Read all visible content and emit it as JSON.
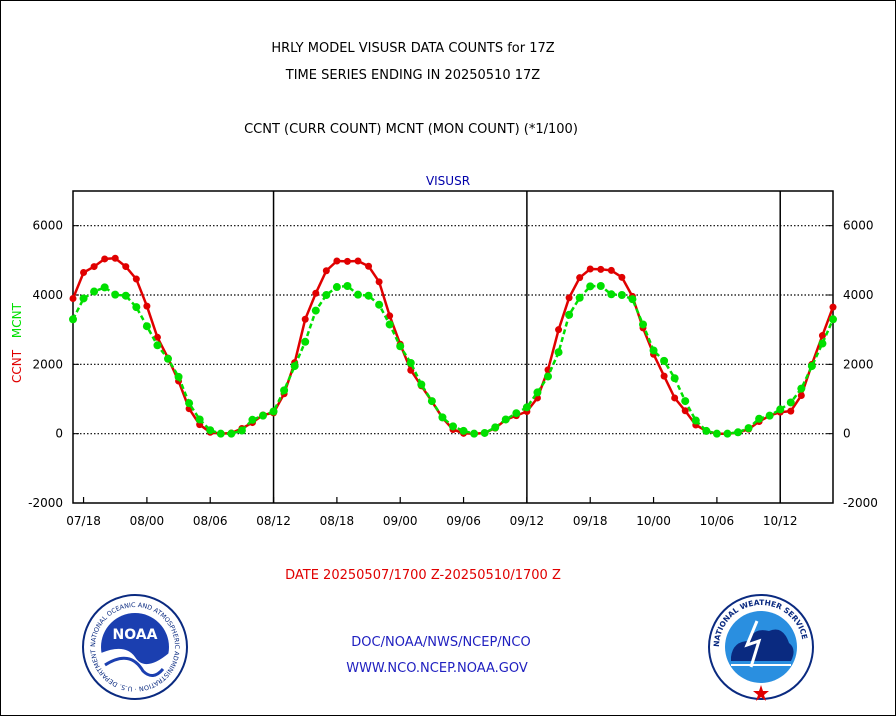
{
  "header": {
    "title_line1": "HRLY MODEL VISUSR DATA COUNTS for 17Z",
    "title_line2": "TIME SERIES ENDING IN 20250510 17Z",
    "subtitle": "CCNT (CURR COUNT) MCNT (MON COUNT) (*1/100)"
  },
  "chart_data": {
    "type": "line",
    "title": "VISUSR",
    "ylabel_parts": [
      "CCNT",
      "MCNT"
    ],
    "xlabel": "DATE 20250507/1700 Z-20250510/1700 Z",
    "ylim": [
      -2000,
      7000
    ],
    "yticks": [
      -2000,
      0,
      2000,
      4000,
      6000
    ],
    "ytick_labels": [
      "-2000",
      "0",
      "2000",
      "4000",
      "6000"
    ],
    "x_start": "2025-05-07 17:00",
    "x_end": "2025-05-10 17:00",
    "xtick_labels": [
      "07/18",
      "08/00",
      "08/06",
      "08/12",
      "08/18",
      "09/00",
      "09/06",
      "09/12",
      "09/18",
      "10/00",
      "10/06",
      "10/12"
    ],
    "grid": "horizontal dotted at y ticks; vertical solid at 12Z",
    "series": [
      {
        "name": "CCNT",
        "color": "#e00000",
        "values": [
          3900,
          4650,
          4820,
          5040,
          5060,
          4820,
          4460,
          3680,
          2780,
          2180,
          1520,
          720,
          260,
          40,
          0,
          20,
          150,
          320,
          540,
          600,
          1150,
          2050,
          3300,
          4050,
          4700,
          4980,
          4970,
          4980,
          4830,
          4380,
          3400,
          2580,
          1830,
          1380,
          930,
          460,
          120,
          10,
          0,
          20,
          160,
          400,
          520,
          640,
          1030,
          1840,
          3000,
          3920,
          4500,
          4750,
          4740,
          4710,
          4510,
          3960,
          3050,
          2290,
          1660,
          1030,
          660,
          250,
          80,
          0,
          0,
          30,
          130,
          350,
          520,
          620,
          650,
          1100,
          2000,
          2830,
          3650
        ]
      },
      {
        "name": "MCNT",
        "color": "#00e000",
        "values": [
          3300,
          3900,
          4100,
          4220,
          4010,
          3980,
          3650,
          3100,
          2550,
          2160,
          1640,
          880,
          410,
          100,
          0,
          0,
          90,
          400,
          520,
          640,
          1250,
          1950,
          2650,
          3550,
          4000,
          4230,
          4260,
          4010,
          3980,
          3720,
          3150,
          2520,
          2040,
          1420,
          940,
          470,
          210,
          80,
          0,
          20,
          180,
          410,
          590,
          760,
          1190,
          1650,
          2350,
          3430,
          3920,
          4250,
          4260,
          4020,
          4000,
          3880,
          3150,
          2400,
          2100,
          1600,
          940,
          380,
          80,
          0,
          0,
          40,
          160,
          430,
          520,
          700,
          900,
          1300,
          1950,
          2600,
          3300
        ]
      }
    ]
  },
  "footer": {
    "line1": "DOC/NOAA/NWS/NCEP/NCO",
    "line2": "WWW.NCO.NCEP.NOAA.GOV",
    "noaa_logo_text": "NOAA",
    "noaa_ring_text": "NATIONAL OCEANIC AND ATMOSPHERIC ADMINISTRATION · U.S. DEPARTMENT OF COMMERCE",
    "nws_ring_text": "NATIONAL WEATHER SERVICE"
  },
  "colors": {
    "title": "#000000",
    "chart_label": "#0000aa",
    "date_label": "#e00000",
    "ccnt": "#e00000",
    "mcnt": "#00e000",
    "footer_text": "#2020c0"
  }
}
